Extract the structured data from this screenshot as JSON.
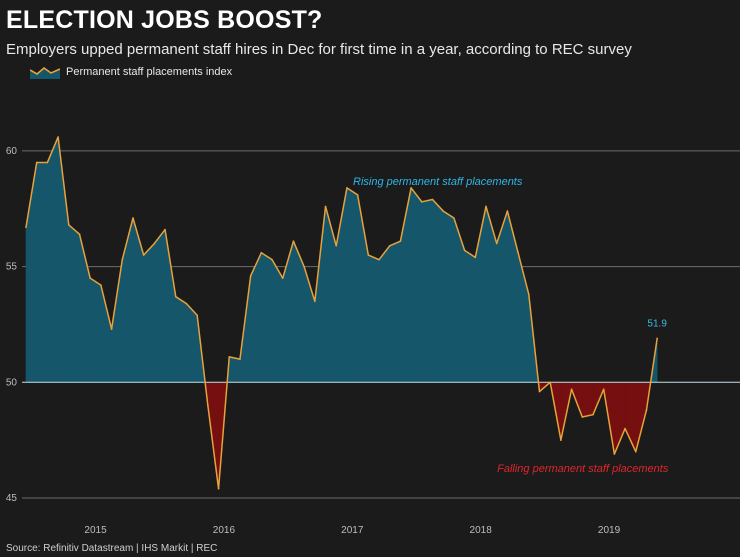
{
  "header": {
    "title": "ELECTION JOBS BOOST?",
    "subtitle": "Employers upped permanent staff hires in Dec for first time in a year, according to REC survey"
  },
  "legend": {
    "label": "Permanent staff placements index"
  },
  "source": "Source: Refinitiv Datastream | IHS Markit | REC",
  "colors": {
    "above": "#15566b",
    "below": "#750f10",
    "line": "#e8a23a",
    "grid": "#6d6d6d",
    "baseline": "#bfe0ea",
    "ann_rising": "#2eb7e6",
    "ann_falling": "#e0262b",
    "last_label": "#3bb9e8"
  },
  "chart_data": {
    "type": "area",
    "title": "ELECTION JOBS BOOST?",
    "series_name": "Permanent staff placements index",
    "baseline": 50,
    "ylim": [
      45,
      62.2
    ],
    "xlim": [
      2014.583,
      2019.958
    ],
    "yticks": [
      "60",
      "55",
      "50",
      "45"
    ],
    "ytick_values": [
      60,
      55,
      50,
      45
    ],
    "xticks": [
      "2015",
      "2016",
      "2017",
      "2018",
      "2019"
    ],
    "xtick_positions": [
      2015.0,
      2016.0,
      2017.0,
      2018.0,
      2019.0
    ],
    "x_start": 2014.583,
    "x_step": 0.0833333,
    "values": [
      56.7,
      59.5,
      59.5,
      60.6,
      56.8,
      56.4,
      54.5,
      54.2,
      52.3,
      55.3,
      57.1,
      55.5,
      56.0,
      56.6,
      53.7,
      53.4,
      52.9,
      49.0,
      45.4,
      51.1,
      51.0,
      54.6,
      55.6,
      55.3,
      54.5,
      56.1,
      55.0,
      53.5,
      57.6,
      55.9,
      58.4,
      58.1,
      55.5,
      55.3,
      55.9,
      56.1,
      58.4,
      57.8,
      57.9,
      57.4,
      57.1,
      55.7,
      55.4,
      57.6,
      56.0,
      57.4,
      55.6,
      53.8,
      49.6,
      50.0,
      47.5,
      49.7,
      48.5,
      48.6,
      49.7,
      46.9,
      48.0,
      47.0,
      48.8,
      51.9
    ],
    "annotations": [
      {
        "text": "Rising permanent staff placements",
        "x": 2017.79,
        "y": 58.7
      },
      {
        "text": "Falling permanent staff placements",
        "x": 2018.92,
        "y": 46.3
      }
    ],
    "last_value_label": "51.9"
  }
}
